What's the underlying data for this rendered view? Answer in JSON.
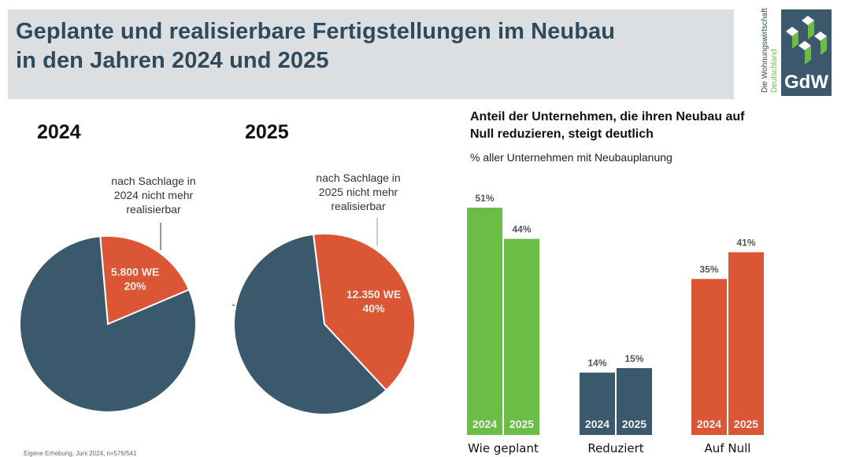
{
  "header": {
    "title_line1": "Geplante und realisierbare Fertigstellungen im Neubau",
    "title_line2": "in den Jahren 2024 und 2025"
  },
  "logo": {
    "brand": "GdW",
    "tagline_line1": "Die Wohnungswirtschaft",
    "tagline_line2": "Deutschland",
    "colors": {
      "background": "#3b586c",
      "accent": "#6dbb45",
      "text_green": "#6dbb45"
    }
  },
  "footnote": "Eigene Erhebung, Juni 2024, n=576/541",
  "colors": {
    "green": "#6abd45",
    "navy": "#3b596d",
    "orange": "#db5634",
    "title": "#2f4a5c"
  },
  "chart_data": [
    {
      "type": "pie",
      "title": "2024",
      "annotation": "nach Sachlage in 2024 nicht mehr realisierbar",
      "annotation_lines": [
        "nach Sachlage in",
        "2024 nicht mehr",
        "realisierbar"
      ],
      "slices": [
        {
          "label": "nach Sachlage nicht mehr realisierbar",
          "value": 20,
          "value_label": "5.800 WE",
          "pct_label": "20%",
          "color": "#db5634"
        },
        {
          "label": "realisierbar",
          "value": 80,
          "color": "#3b596d"
        }
      ]
    },
    {
      "type": "pie",
      "title": "2025",
      "annotation": "nach Sachlage in 2025 nicht mehr realisierbar",
      "annotation_lines": [
        "nach Sachlage in",
        "2025 nicht mehr",
        "realisierbar"
      ],
      "slices": [
        {
          "label": "nach Sachlage nicht mehr realisierbar",
          "value": 40,
          "value_label": "12.350 WE",
          "pct_label": "40%",
          "color": "#db5634"
        },
        {
          "label": "realisierbar",
          "value": 60,
          "color": "#3b596d"
        }
      ]
    },
    {
      "type": "bar",
      "title": "Anteil der Unternehmen, die ihren Neubau auf Null reduzieren, steigt deutlich",
      "title_lines": [
        "Anteil der Unternehmen, die ihren Neubau auf",
        "Null reduzieren, steigt deutlich"
      ],
      "subtitle": "% aller Unternehmen mit Neubauplanung",
      "categories": [
        "Wie geplant",
        "Reduziert",
        "Auf Null"
      ],
      "series": [
        {
          "name": "2024",
          "values": [
            51,
            14,
            35
          ]
        },
        {
          "name": "2025",
          "values": [
            44,
            15,
            41
          ]
        }
      ],
      "value_labels": [
        [
          "51%",
          "44%"
        ],
        [
          "14%",
          "15%"
        ],
        [
          "35%",
          "41%"
        ]
      ],
      "category_colors": [
        "#6abd45",
        "#3b596d",
        "#db5634"
      ],
      "ylim": [
        0,
        55
      ],
      "grid": false,
      "legend": "none (year labels inside bars)"
    }
  ]
}
